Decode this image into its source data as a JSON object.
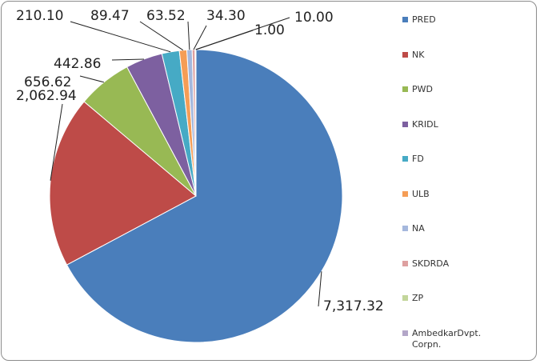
{
  "chart_data": {
    "type": "pie",
    "categories": [
      "PRED",
      "NK",
      "PWD",
      "KRIDL",
      "FD",
      "ULB",
      "NA",
      "SKDRDA",
      "ZP",
      "AmbedkarDvpt. Corpn."
    ],
    "values": [
      7317.32,
      2062.94,
      656.62,
      442.86,
      210.1,
      89.47,
      63.52,
      34.3,
      10.0,
      1.0
    ],
    "value_labels": [
      "7,317.32",
      "2,062.94",
      "656.62",
      "442.86",
      "210.10",
      "89.47",
      "63.52",
      "34.30",
      "10.00",
      "1.00"
    ],
    "colors": [
      "#4a7ebb",
      "#be4b48",
      "#98b954",
      "#7d60a0",
      "#46aac5",
      "#f59d56",
      "#a5b8dd",
      "#dea0a0",
      "#c3d69b",
      "#b3a6c8"
    ],
    "legend": "right"
  }
}
